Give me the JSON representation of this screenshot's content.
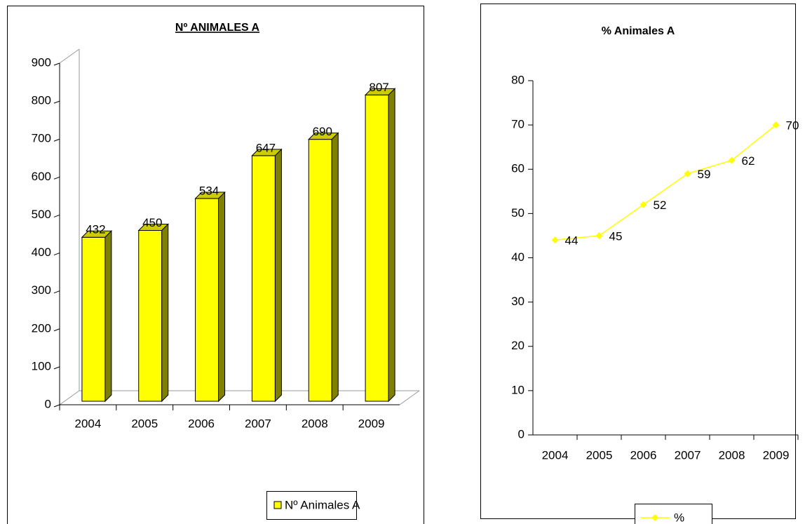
{
  "chart_data": [
    {
      "type": "bar3d",
      "title": "Nº ANIMALES A",
      "categories": [
        "2004",
        "2005",
        "2006",
        "2007",
        "2008",
        "2009"
      ],
      "series": [
        {
          "name": "Nº Animales A",
          "color": "#ffff00",
          "values": [
            432,
            450,
            534,
            647,
            690,
            807
          ]
        }
      ],
      "ylim": [
        0,
        900
      ],
      "yticks": [
        0,
        100,
        200,
        300,
        400,
        500,
        600,
        700,
        800,
        900
      ],
      "legend": "bottom"
    },
    {
      "type": "line",
      "title": "% Animales A",
      "categories": [
        "2004",
        "2005",
        "2006",
        "2007",
        "2008",
        "2009"
      ],
      "series": [
        {
          "name": "%",
          "color": "#ffff00",
          "values": [
            44,
            45,
            52,
            59,
            62,
            70
          ]
        }
      ],
      "ylim": [
        0,
        80
      ],
      "yticks": [
        0,
        10,
        20,
        30,
        40,
        50,
        60,
        70,
        80
      ],
      "legend": "bottom"
    }
  ]
}
